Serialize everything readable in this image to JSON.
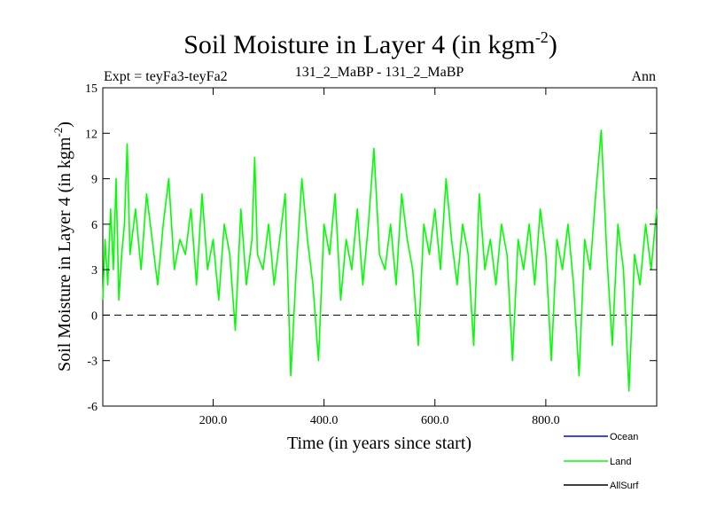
{
  "chart_data": {
    "type": "line",
    "title": "Soil Moisture in Layer 4 (in kgm",
    "title_sup": "-2",
    "title_close": ")",
    "subtitle_left": "Expt = teyFa3-teyFa2",
    "subtitle_center": "131_2_MaBP - 131_2_MaBP",
    "subtitle_right": "Ann",
    "xlabel": "Time (in years since start)",
    "ylabel": "Soil Moisture in Layer 4 (in kgm",
    "ylabel_sup": "-2",
    "ylabel_close": ")",
    "xlim": [
      1,
      1000
    ],
    "ylim": [
      -6,
      15
    ],
    "x_ticks": [
      200,
      400,
      600,
      800
    ],
    "x_tick_labels": [
      "200.0",
      "400.0",
      "600.0",
      "800.0"
    ],
    "y_ticks": [
      -6,
      -3,
      0,
      3,
      6,
      9,
      12,
      15
    ],
    "y_tick_labels": [
      "-6",
      "-3",
      "0",
      "3",
      "6",
      "9",
      "12",
      "15"
    ],
    "zero_line": 0,
    "series": [
      {
        "name": "Land",
        "color": "#00ff00",
        "description": "annual values, years 1-1000",
        "points": [
          [
            1,
            1
          ],
          [
            5,
            5
          ],
          [
            10,
            2
          ],
          [
            15,
            7
          ],
          [
            20,
            3
          ],
          [
            25,
            9
          ],
          [
            30,
            1
          ],
          [
            35,
            4
          ],
          [
            40,
            6
          ],
          [
            45,
            11.3
          ],
          [
            50,
            4
          ],
          [
            60,
            7
          ],
          [
            70,
            3
          ],
          [
            80,
            8
          ],
          [
            90,
            5
          ],
          [
            100,
            2
          ],
          [
            110,
            6
          ],
          [
            120,
            9
          ],
          [
            130,
            3
          ],
          [
            140,
            5
          ],
          [
            150,
            4
          ],
          [
            160,
            7
          ],
          [
            170,
            2
          ],
          [
            180,
            8
          ],
          [
            190,
            3
          ],
          [
            200,
            5
          ],
          [
            210,
            1
          ],
          [
            220,
            6
          ],
          [
            230,
            4
          ],
          [
            240,
            -1
          ],
          [
            250,
            7
          ],
          [
            260,
            2
          ],
          [
            270,
            5
          ],
          [
            275,
            10.4
          ],
          [
            280,
            4
          ],
          [
            290,
            3
          ],
          [
            300,
            6
          ],
          [
            310,
            2
          ],
          [
            320,
            5
          ],
          [
            330,
            8
          ],
          [
            340,
            -4
          ],
          [
            350,
            3
          ],
          [
            360,
            9
          ],
          [
            370,
            5
          ],
          [
            380,
            2
          ],
          [
            390,
            -3
          ],
          [
            400,
            6
          ],
          [
            410,
            4
          ],
          [
            420,
            8
          ],
          [
            430,
            1
          ],
          [
            440,
            5
          ],
          [
            450,
            3
          ],
          [
            460,
            7
          ],
          [
            470,
            2
          ],
          [
            480,
            6
          ],
          [
            490,
            11
          ],
          [
            500,
            4
          ],
          [
            510,
            3
          ],
          [
            520,
            6
          ],
          [
            530,
            2
          ],
          [
            540,
            8
          ],
          [
            550,
            5
          ],
          [
            560,
            3
          ],
          [
            570,
            -2
          ],
          [
            580,
            6
          ],
          [
            590,
            4
          ],
          [
            600,
            7
          ],
          [
            610,
            3
          ],
          [
            620,
            9
          ],
          [
            630,
            5
          ],
          [
            640,
            2
          ],
          [
            650,
            6
          ],
          [
            660,
            4
          ],
          [
            670,
            -2
          ],
          [
            680,
            8
          ],
          [
            690,
            3
          ],
          [
            700,
            5
          ],
          [
            710,
            2
          ],
          [
            720,
            6
          ],
          [
            730,
            4
          ],
          [
            740,
            -3
          ],
          [
            750,
            5
          ],
          [
            760,
            3
          ],
          [
            770,
            6
          ],
          [
            780,
            2
          ],
          [
            790,
            7
          ],
          [
            800,
            4
          ],
          [
            810,
            -3
          ],
          [
            820,
            5
          ],
          [
            830,
            3
          ],
          [
            840,
            6
          ],
          [
            850,
            2
          ],
          [
            860,
            -4
          ],
          [
            870,
            5
          ],
          [
            880,
            3
          ],
          [
            890,
            8
          ],
          [
            900,
            12.2
          ],
          [
            910,
            4
          ],
          [
            920,
            -2
          ],
          [
            930,
            6
          ],
          [
            940,
            3
          ],
          [
            950,
            -5
          ],
          [
            960,
            4
          ],
          [
            970,
            2
          ],
          [
            980,
            6
          ],
          [
            990,
            3
          ],
          [
            1000,
            7
          ]
        ]
      }
    ],
    "legend": [
      {
        "name": "Ocean",
        "color": "#0000ff"
      },
      {
        "name": "Land",
        "color": "#00ff00"
      },
      {
        "name": "AllSurf",
        "color": "#000000"
      }
    ]
  }
}
